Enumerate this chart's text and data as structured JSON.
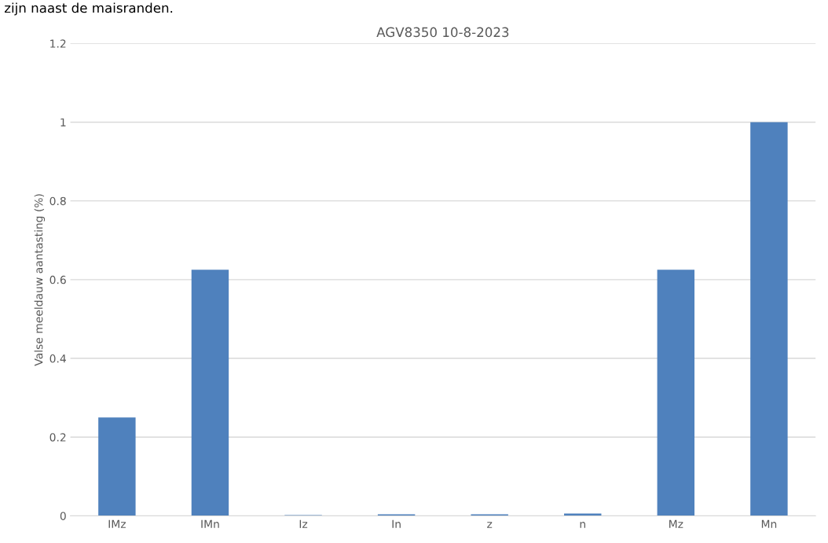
{
  "chart_data": {
    "type": "bar",
    "title": "AGV8350 10-8-2023",
    "ylabel": "Valse meeldauw aantasting (%)",
    "categories": [
      "IMz",
      "IMn",
      "Iz",
      "In",
      "z",
      "n",
      "Mz",
      "Mn"
    ],
    "values": [
      0.25,
      0.625,
      0.002,
      0.004,
      0.004,
      0.006,
      0.625,
      1.0
    ],
    "color": "#4f81bd",
    "ylim": [
      0,
      1.2
    ],
    "yticks": [
      0,
      0.2,
      0.4,
      0.6,
      0.8,
      1,
      1.2
    ],
    "grid": "y",
    "annotations": [
      "zijn naast de maisranden."
    ]
  }
}
